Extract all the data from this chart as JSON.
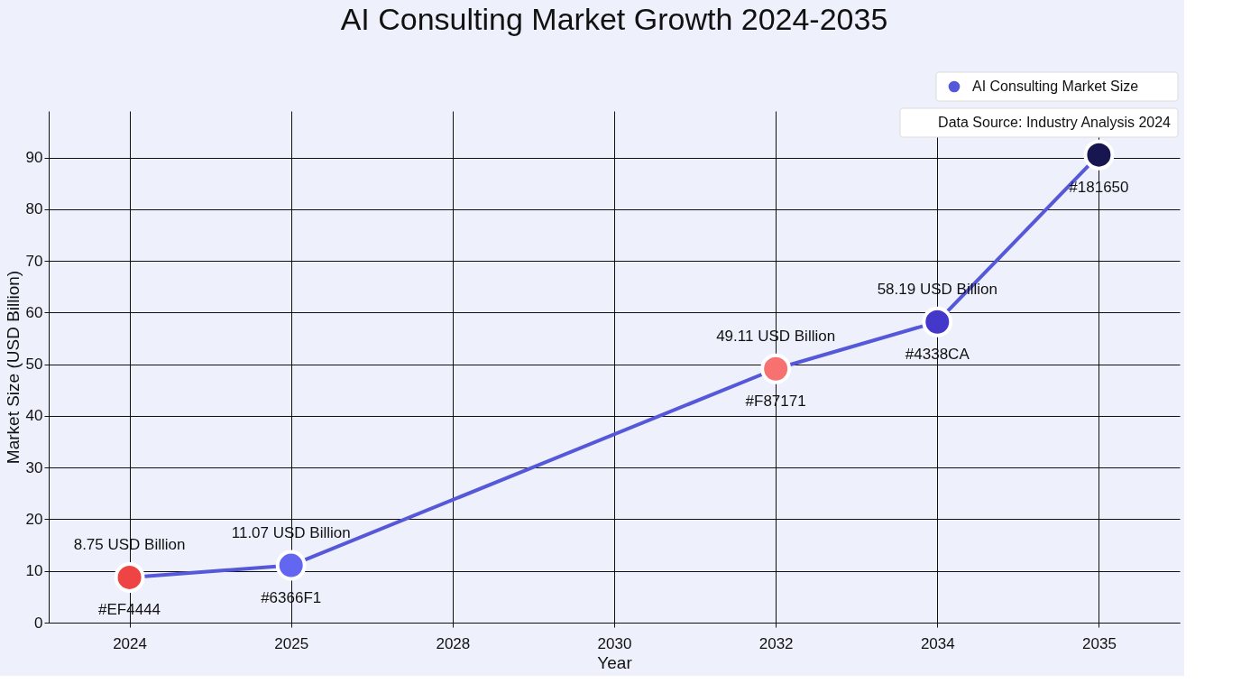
{
  "chart_data": {
    "type": "line",
    "title": "AI Consulting Market Growth 2024-2035",
    "xlabel": "Year",
    "ylabel": "Market Size (USD Billion)",
    "categories": [
      "2024",
      "2025",
      "2028",
      "2030",
      "2032",
      "2034",
      "2035"
    ],
    "series": [
      {
        "name": "AI Consulting Market Size",
        "color": "#5558d9",
        "values": [
          8.75,
          11.07,
          null,
          null,
          49.11,
          58.19,
          90.5
        ],
        "colors": [
          "#ef4444",
          "#6366f1",
          null,
          null,
          "#f87171",
          "#4338ca",
          "#181650"
        ],
        "value_labels": [
          "8.75 USD Billion",
          "11.07 USD Billion",
          null,
          null,
          "49.11 USD Billion",
          "58.19 USD Billion",
          null
        ]
      }
    ],
    "ylim": [
      0,
      99
    ],
    "yticks": [
      0,
      10,
      20,
      30,
      40,
      50,
      60,
      70,
      80,
      90
    ],
    "grid": true,
    "legend": "top right",
    "marker": "circle",
    "line_style": "solid",
    "annotations": [
      {
        "text": "#EF4444",
        "x": "2024",
        "y": 8.75
      },
      {
        "text": "#6366F1",
        "x": "2025",
        "y": 11.07
      },
      {
        "text": "#F87171",
        "x": "2032",
        "y": 49.11
      },
      {
        "text": "#4338CA",
        "x": "2034",
        "y": 58.19
      },
      {
        "text": "#181650",
        "x": "2035",
        "y": 90.5
      },
      "Data Source: Industry Analysis 2024"
    ]
  }
}
